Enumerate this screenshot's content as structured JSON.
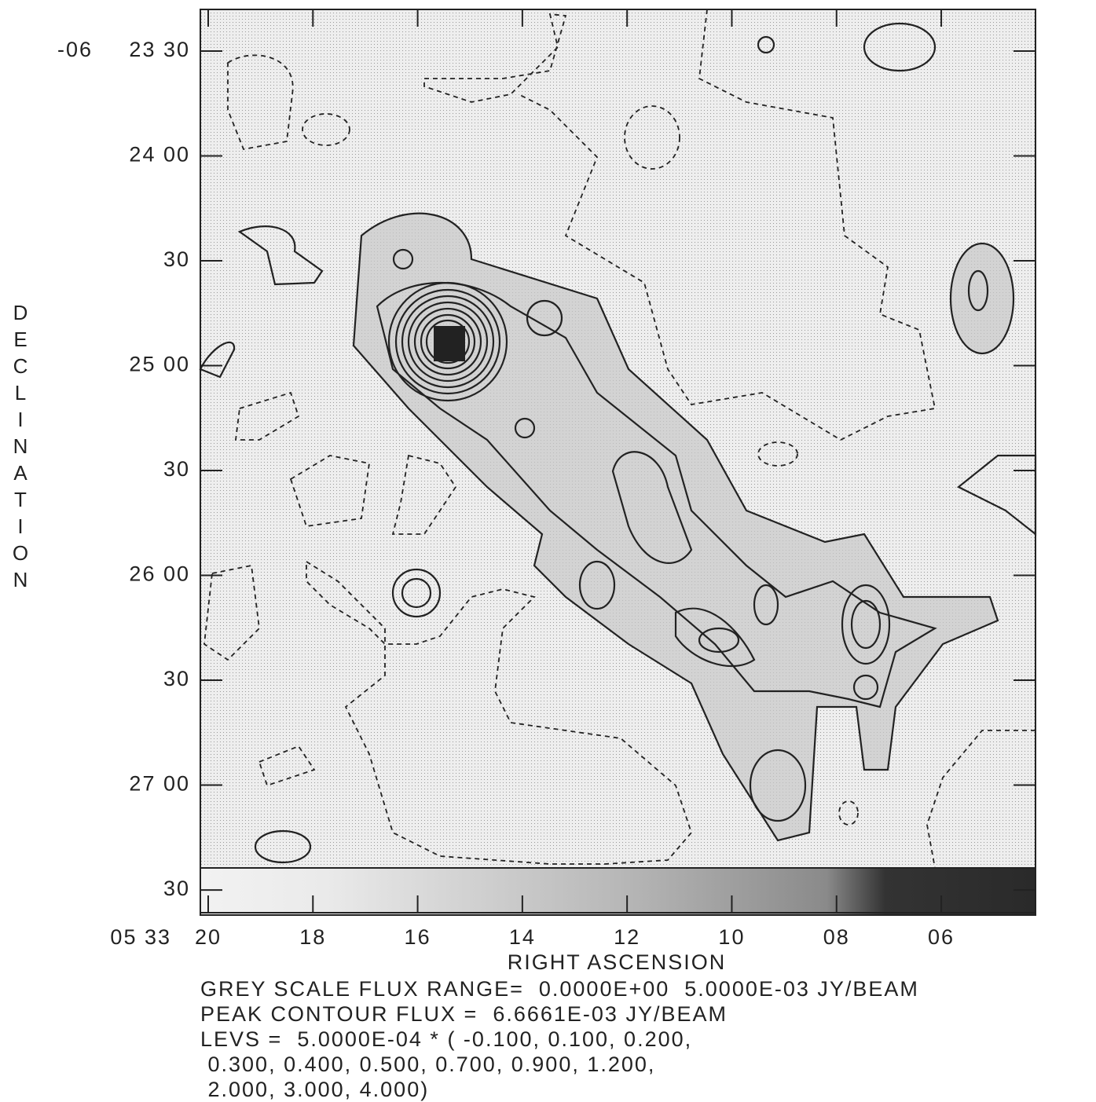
{
  "chart_data": {
    "type": "contour",
    "x_label": "RIGHT ASCENSION",
    "y_label": "DECLINATION",
    "x_prefix": "05 33",
    "y_prefix": "-06",
    "xlim": [
      20.15,
      4.2
    ],
    "ylim": [
      276.5,
      18.1
    ],
    "xticks": [
      {
        "value": 20,
        "label": "20"
      },
      {
        "value": 18,
        "label": "18"
      },
      {
        "value": 16,
        "label": "16"
      },
      {
        "value": 14,
        "label": "14"
      },
      {
        "value": 12,
        "label": "12"
      },
      {
        "value": 10,
        "label": "10"
      },
      {
        "value": 8,
        "label": "08"
      },
      {
        "value": 6,
        "label": "06"
      }
    ],
    "yticks": [
      {
        "value": 30,
        "label": "23 30"
      },
      {
        "value": 60,
        "label": "24 00"
      },
      {
        "value": 90,
        "label": "30"
      },
      {
        "value": 120,
        "label": "25 00"
      },
      {
        "value": 150,
        "label": "30"
      },
      {
        "value": 180,
        "label": "26 00"
      },
      {
        "value": 210,
        "label": "30"
      },
      {
        "value": 240,
        "label": "27 00"
      },
      {
        "value": 270,
        "label": "30"
      }
    ],
    "notes": [
      "GREY SCALE FLUX RANGE=  0.0000E+00  5.0000E-03 JY/BEAM",
      "PEAK CONTOUR FLUX =  6.6661E-03 JY/BEAM",
      "LEVS =  5.0000E-04 * ( -0.100, 0.100, 0.200,",
      " 0.300, 0.400, 0.500, 0.700, 0.900, 1.200,",
      " 2.000, 3.000, 4.000)"
    ]
  }
}
